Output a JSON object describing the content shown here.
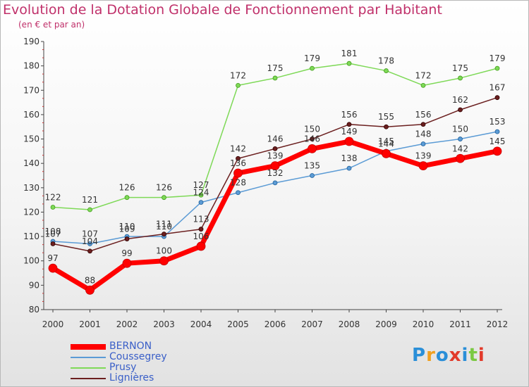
{
  "title": "Evolution de la Dotation Globale de Fonctionnement par Habitant",
  "subtitle": "(en € et par an)",
  "logo": {
    "text": "Proxiti",
    "colors": [
      "#2a8fd8",
      "#f0a020",
      "#2a8fd8",
      "#e23a2a",
      "#2a8fd8",
      "#7ac943",
      "#e23a2a"
    ]
  },
  "chart_data": {
    "type": "line",
    "title": "Evolution de la Dotation Globale de Fonctionnement par Habitant",
    "subtitle": "(en € et par an)",
    "categories": [
      "2000",
      "2001",
      "2002",
      "2003",
      "2004",
      "2005",
      "2006",
      "2007",
      "2008",
      "2009",
      "2010",
      "2011",
      "2012"
    ],
    "y_ticks": [
      "80",
      "90",
      "100",
      "110",
      "120",
      "130",
      "140",
      "150",
      "160",
      "170",
      "180",
      "190"
    ],
    "ylim": [
      80,
      190
    ],
    "grid": false,
    "legend_position": "bottom-left",
    "series": [
      {
        "name": "Coussegrey",
        "color": "#5b9bd5",
        "values": [
          108,
          107,
          110,
          110,
          124,
          128,
          132,
          135,
          138,
          145,
          148,
          150,
          153
        ],
        "labels": [
          "108",
          "107",
          "110",
          "110",
          "124",
          "128",
          "132",
          "135",
          "138",
          "145",
          "148",
          "150",
          "153"
        ]
      },
      {
        "name": "Prusy",
        "color": "#7ed957",
        "values": [
          122,
          121,
          126,
          126,
          127,
          172,
          175,
          179,
          181,
          178,
          172,
          175,
          179
        ],
        "labels": [
          "122",
          "121",
          "126",
          "126",
          "127",
          "172",
          "175",
          "179",
          "181",
          "178",
          "172",
          "175",
          "179"
        ]
      },
      {
        "name": "Lignières",
        "color": "#6b1f1f",
        "values": [
          107,
          104,
          109,
          111,
          113,
          142,
          146,
          150,
          156,
          155,
          156,
          162,
          167
        ],
        "labels": [
          "107",
          "104",
          "109",
          "111",
          "113",
          "142",
          "146",
          "150",
          "156",
          "155",
          "156",
          "162",
          "167"
        ]
      },
      {
        "name": "BERNON",
        "color": "#ff0000",
        "values": [
          97,
          88,
          99,
          100,
          106,
          136,
          139,
          146,
          149,
          144,
          139,
          142,
          145
        ],
        "labels": [
          "97",
          "88",
          "99",
          "100",
          "106",
          "136",
          "139",
          "146",
          "149",
          "144",
          "139",
          "142",
          "145"
        ]
      }
    ],
    "legend_order": [
      "BERNON",
      "Coussegrey",
      "Prusy",
      "Lignières"
    ]
  }
}
